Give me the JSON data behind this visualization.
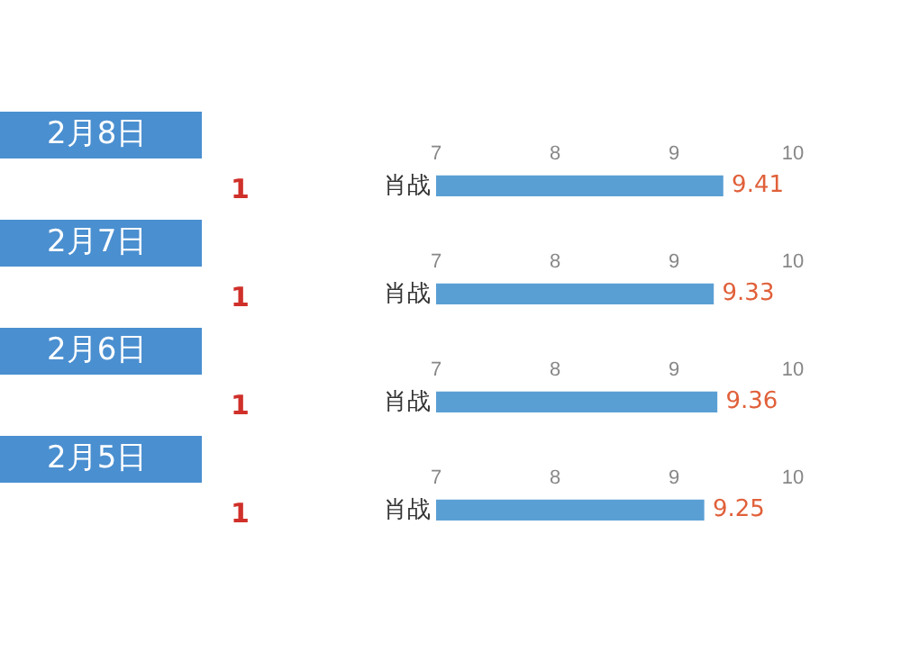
{
  "chart_data": [
    {
      "type": "bar",
      "orientation": "horizontal",
      "annotations": [
        "2月8日",
        "1"
      ],
      "categories": [
        "肖战"
      ],
      "values": [
        9.41
      ],
      "color": "#5a9fd4",
      "xlim": [
        7,
        10
      ],
      "xticks": [
        7,
        8,
        9,
        10
      ],
      "data_labels": true,
      "grid": false,
      "legend": false
    },
    {
      "type": "bar",
      "orientation": "horizontal",
      "annotations": [
        "2月7日",
        "1"
      ],
      "categories": [
        "肖战"
      ],
      "values": [
        9.33
      ],
      "color": "#5a9fd4",
      "xlim": [
        7,
        10
      ],
      "xticks": [
        7,
        8,
        9,
        10
      ],
      "data_labels": true,
      "grid": false,
      "legend": false
    },
    {
      "type": "bar",
      "orientation": "horizontal",
      "annotations": [
        "2月6日",
        "1"
      ],
      "categories": [
        "肖战"
      ],
      "values": [
        9.36
      ],
      "color": "#5a9fd4",
      "xlim": [
        7,
        10
      ],
      "xticks": [
        7,
        8,
        9,
        10
      ],
      "data_labels": true,
      "grid": false,
      "legend": false
    },
    {
      "type": "bar",
      "orientation": "horizontal",
      "annotations": [
        "2月5日",
        "1"
      ],
      "categories": [
        "肖战"
      ],
      "values": [
        9.25
      ],
      "color": "#5a9fd4",
      "xlim": [
        7,
        10
      ],
      "xticks": [
        7,
        8,
        9,
        10
      ],
      "data_labels": true,
      "grid": false,
      "legend": false
    }
  ]
}
